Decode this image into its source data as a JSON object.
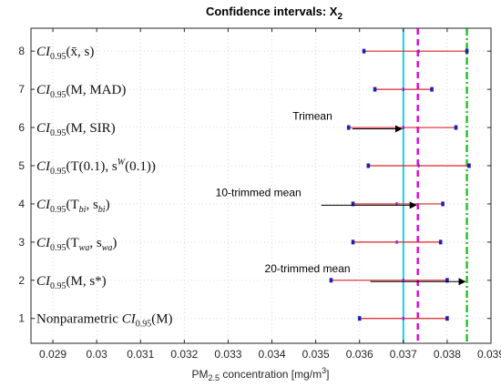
{
  "chart_data": {
    "type": "interval",
    "title": "Confidence intervals: X",
    "title_sub": "2",
    "xlabel": {
      "pre": "PM",
      "sub": "2.5",
      "mid": " concentration [mg/m",
      "sup": "3",
      "post": "]"
    },
    "xlim": [
      0.0285,
      0.039
    ],
    "xticks": [
      "0.029",
      "0.03",
      "0.031",
      "0.032",
      "0.033",
      "0.034",
      "0.035",
      "0.036",
      "0.037",
      "0.038",
      "0.039"
    ],
    "ylim": [
      0.35,
      8.6
    ],
    "grid": true,
    "intervals": [
      {
        "row": 8,
        "label": {
          "base": "CI",
          "sub": "0.95",
          "arg": "(x̄, s)"
        },
        "lower": 0.0361,
        "center": 0.03735,
        "upper": 0.03845
      },
      {
        "row": 7,
        "label": {
          "base": "CI",
          "sub": "0.95",
          "arg": "(M, MAD)"
        },
        "lower": 0.03635,
        "center": 0.037,
        "upper": 0.03765
      },
      {
        "row": 6,
        "label": {
          "base": "CI",
          "sub": "0.95",
          "arg": "(M, SIR)"
        },
        "lower": 0.03575,
        "center": 0.037,
        "upper": 0.0382
      },
      {
        "row": 5,
        "label": {
          "base": "CI",
          "sub": "0.95",
          "arg": "(T(0.1), s^W(0.1))"
        },
        "lower": 0.0362,
        "center": 0.03735,
        "upper": 0.0385
      },
      {
        "row": 4,
        "label": {
          "base": "CI",
          "sub": "0.95",
          "arg": "(T_bi, s_bi)"
        },
        "lower": 0.03585,
        "center": 0.03685,
        "upper": 0.0379
      },
      {
        "row": 3,
        "label": {
          "base": "CI",
          "sub": "0.95",
          "arg": "(T_wa, s_wa)"
        },
        "lower": 0.03585,
        "center": 0.03685,
        "upper": 0.03785
      },
      {
        "row": 2,
        "label": {
          "base": "CI",
          "sub": "0.95",
          "arg": "(M, s*)"
        },
        "lower": 0.03535,
        "center": 0.037,
        "upper": 0.038
      },
      {
        "row": 1,
        "label": {
          "base": "Nonparametric CI",
          "sub": "0.95",
          "arg": "(M)"
        },
        "lower": 0.036,
        "center": 0.037,
        "upper": 0.038
      }
    ],
    "reference_lines": [
      {
        "name": "Trimean",
        "x": 0.037,
        "color": "#00d0d8",
        "style": "solid"
      },
      {
        "name": "10-trimmed mean",
        "x": 0.03733,
        "color": "#e000e0",
        "style": "dashed"
      },
      {
        "name": "20-trimmed mean",
        "x": 0.03845,
        "color": "#20c020",
        "style": "dashdot"
      }
    ],
    "annotations": [
      {
        "text": "Trimean",
        "y": 6.3,
        "target_x": 0.037
      },
      {
        "text": "10-trimmed mean",
        "y": 4.3,
        "target_x": 0.03733
      },
      {
        "text": "20-trimmed mean",
        "y": 2.3,
        "target_x": 0.03845
      }
    ],
    "colors": {
      "interval": "#d9242b",
      "endpoint": "#1f1fb0",
      "center": "#8a2be2"
    }
  }
}
